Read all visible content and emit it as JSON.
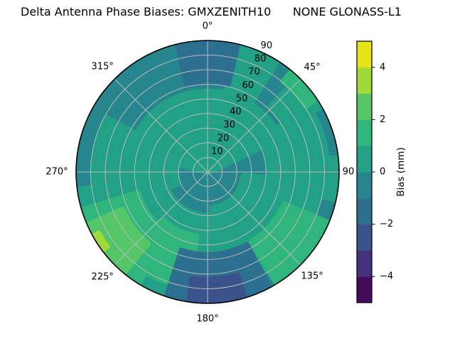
{
  "chart_data": {
    "type": "heatmap",
    "projection": "polar",
    "title": "Delta Antenna Phase Biases: GMXZENITH10      NONE GLONASS-L1",
    "colorbar": {
      "label": "Bias (mm)",
      "min": -5,
      "max": 5,
      "band_size": 1,
      "tick_values": [
        4,
        2,
        0,
        -2,
        -4
      ],
      "tick_labels": [
        "4",
        "2",
        "0",
        "−2",
        "−4"
      ],
      "band_colors": [
        "#460a5c",
        "#45317e",
        "#3a538b",
        "#2d6f8e",
        "#26858d",
        "#23a186",
        "#30b57c",
        "#55c667",
        "#9fd93a",
        "#e6e419"
      ]
    },
    "angular_ticks": [
      {
        "azimuth_deg": 0,
        "label": "0°"
      },
      {
        "azimuth_deg": 45,
        "label": "45°"
      },
      {
        "azimuth_deg": 90,
        "label": "90"
      },
      {
        "azimuth_deg": 135,
        "label": "135°"
      },
      {
        "azimuth_deg": 180,
        "label": "180°"
      },
      {
        "azimuth_deg": 225,
        "label": "225°"
      },
      {
        "azimuth_deg": 270,
        "label": "270°"
      },
      {
        "azimuth_deg": 315,
        "label": "315°"
      }
    ],
    "radial_ticks": {
      "values": [
        10,
        20,
        30,
        40,
        50,
        60,
        70,
        80,
        90
      ],
      "label_azimuth_deg": 22.5
    },
    "radial_range": [
      0,
      90
    ],
    "grid": true,
    "background_bias_band": [
      -1,
      0
    ],
    "regions": [
      {
        "bias_band": [
          0,
          1
        ],
        "azimuth_deg": [
          285,
          425
        ],
        "radius": [
          0,
          55
        ]
      },
      {
        "bias_band": [
          0,
          1
        ],
        "azimuth_deg": [
          13,
          32
        ],
        "radius": [
          55,
          90
        ]
      },
      {
        "bias_band": [
          0,
          1
        ],
        "azimuth_deg": [
          248,
          298
        ],
        "radius": [
          22,
          78
        ]
      },
      {
        "bias_band": [
          0,
          1
        ],
        "azimuth_deg": [
          175,
          262
        ],
        "radius": [
          30,
          90
        ]
      },
      {
        "bias_band": [
          0,
          1
        ],
        "azimuth_deg": [
          96,
          172
        ],
        "radius": [
          25,
          78
        ]
      },
      {
        "bias_band": [
          0,
          1
        ],
        "azimuth_deg": [
          58,
          100
        ],
        "radius": [
          42,
          82
        ]
      },
      {
        "bias_band": [
          0,
          1
        ],
        "azimuth_deg": [
          84,
          102
        ],
        "radius": [
          42,
          90
        ]
      },
      {
        "bias_band": [
          0,
          1
        ],
        "azimuth_deg": [
          44,
          60
        ],
        "radius": [
          62,
          88
        ]
      },
      {
        "bias_band": [
          1,
          2
        ],
        "azimuth_deg": [
          212,
          253
        ],
        "radius": [
          50,
          90
        ]
      },
      {
        "bias_band": [
          1,
          2
        ],
        "azimuth_deg": [
          190,
          222
        ],
        "radius": [
          45,
          80
        ]
      },
      {
        "bias_band": [
          1,
          2
        ],
        "azimuth_deg": [
          113,
          148
        ],
        "radius": [
          57,
          90
        ]
      },
      {
        "bias_band": [
          1,
          2
        ],
        "azimuth_deg": [
          40,
          56
        ],
        "radius": [
          81,
          90
        ]
      },
      {
        "bias_band": [
          2,
          3
        ],
        "azimuth_deg": [
          220,
          246
        ],
        "radius": [
          64,
          90
        ]
      },
      {
        "bias_band": [
          3,
          4
        ],
        "azimuth_deg": [
          233,
          241
        ],
        "radius": [
          85,
          90
        ]
      },
      {
        "bias_band": [
          -2,
          -1
        ],
        "azimuth_deg": [
          347,
          373
        ],
        "radius": [
          62,
          90
        ]
      },
      {
        "bias_band": [
          -2,
          -1
        ],
        "azimuth_deg": [
          152,
          198
        ],
        "radius": [
          57,
          90
        ]
      },
      {
        "bias_band": [
          -3,
          -2
        ],
        "azimuth_deg": [
          164,
          188
        ],
        "radius": [
          74,
          90
        ]
      }
    ]
  },
  "style_colors": {
    "grid_line": "#b8bcbc",
    "outline": "#000000",
    "text": "#000000"
  }
}
